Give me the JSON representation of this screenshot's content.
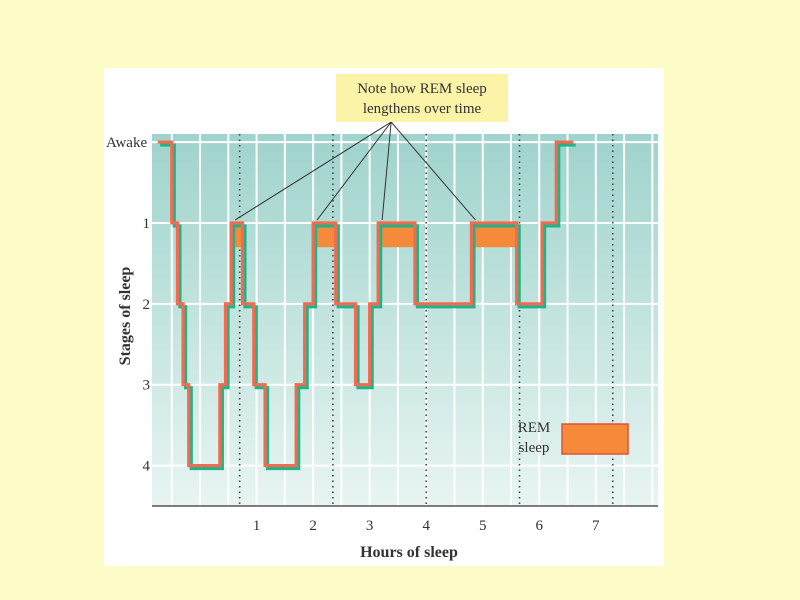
{
  "chart_data": {
    "type": "line",
    "title": "",
    "xlabel": "Hours of sleep",
    "ylabel": "Stages of sleep",
    "xlim": [
      -0.85,
      8.1
    ],
    "x_ticks": [
      1,
      2,
      3,
      4,
      5,
      6,
      7
    ],
    "y_ticks": [
      {
        "value": 0,
        "label": "Awake"
      },
      {
        "value": 1,
        "label": "1"
      },
      {
        "value": 2,
        "label": "2"
      },
      {
        "value": 3,
        "label": "3"
      },
      {
        "value": 4,
        "label": "4"
      }
    ],
    "ylim": [
      -0.1,
      4.5
    ],
    "dotted_lines_x": [
      0.7,
      2.35,
      4.0,
      5.65,
      7.3
    ],
    "hypnogram": [
      [
        -0.75,
        0
      ],
      [
        -0.5,
        0
      ],
      [
        -0.5,
        1
      ],
      [
        -0.4,
        1
      ],
      [
        -0.4,
        2
      ],
      [
        -0.3,
        2
      ],
      [
        -0.3,
        3
      ],
      [
        -0.2,
        3
      ],
      [
        -0.2,
        4
      ],
      [
        0.35,
        4
      ],
      [
        0.35,
        3
      ],
      [
        0.45,
        3
      ],
      [
        0.45,
        2
      ],
      [
        0.55,
        2
      ],
      [
        0.55,
        1
      ],
      [
        0.75,
        1
      ],
      [
        0.75,
        2
      ],
      [
        0.95,
        2
      ],
      [
        0.95,
        3
      ],
      [
        1.15,
        3
      ],
      [
        1.15,
        4
      ],
      [
        1.7,
        4
      ],
      [
        1.7,
        3
      ],
      [
        1.85,
        3
      ],
      [
        1.85,
        2
      ],
      [
        2.0,
        2
      ],
      [
        2.0,
        1
      ],
      [
        2.4,
        1
      ],
      [
        2.4,
        2
      ],
      [
        2.75,
        2
      ],
      [
        2.75,
        3
      ],
      [
        3.0,
        3
      ],
      [
        3.0,
        2
      ],
      [
        3.15,
        2
      ],
      [
        3.15,
        1
      ],
      [
        3.8,
        1
      ],
      [
        3.8,
        2
      ],
      [
        4.8,
        2
      ],
      [
        4.8,
        1
      ],
      [
        5.6,
        1
      ],
      [
        5.6,
        2
      ],
      [
        6.05,
        2
      ],
      [
        6.05,
        1
      ],
      [
        6.3,
        1
      ],
      [
        6.3,
        0
      ],
      [
        6.6,
        0
      ]
    ],
    "rem_periods": [
      [
        0.55,
        0.75
      ],
      [
        2.0,
        2.4
      ],
      [
        3.15,
        3.8
      ],
      [
        4.8,
        5.6
      ]
    ],
    "annotation": {
      "lines": [
        "Note how REM sleep",
        "lengthens over time"
      ],
      "apex_x": 3.38
    },
    "legend": {
      "lines": [
        "REM",
        "sleep"
      ],
      "position": "bottom-right"
    },
    "colors": {
      "plot_bg_top": "#9fd3cc",
      "plot_bg_bottom": "#e8f5f2",
      "line": "#f26a4f",
      "shadow": "#1fb38a",
      "rem": "#f58a3a",
      "rem_border": "#e2503a",
      "note_bg": "#faf3a8",
      "text": "#333333"
    }
  }
}
